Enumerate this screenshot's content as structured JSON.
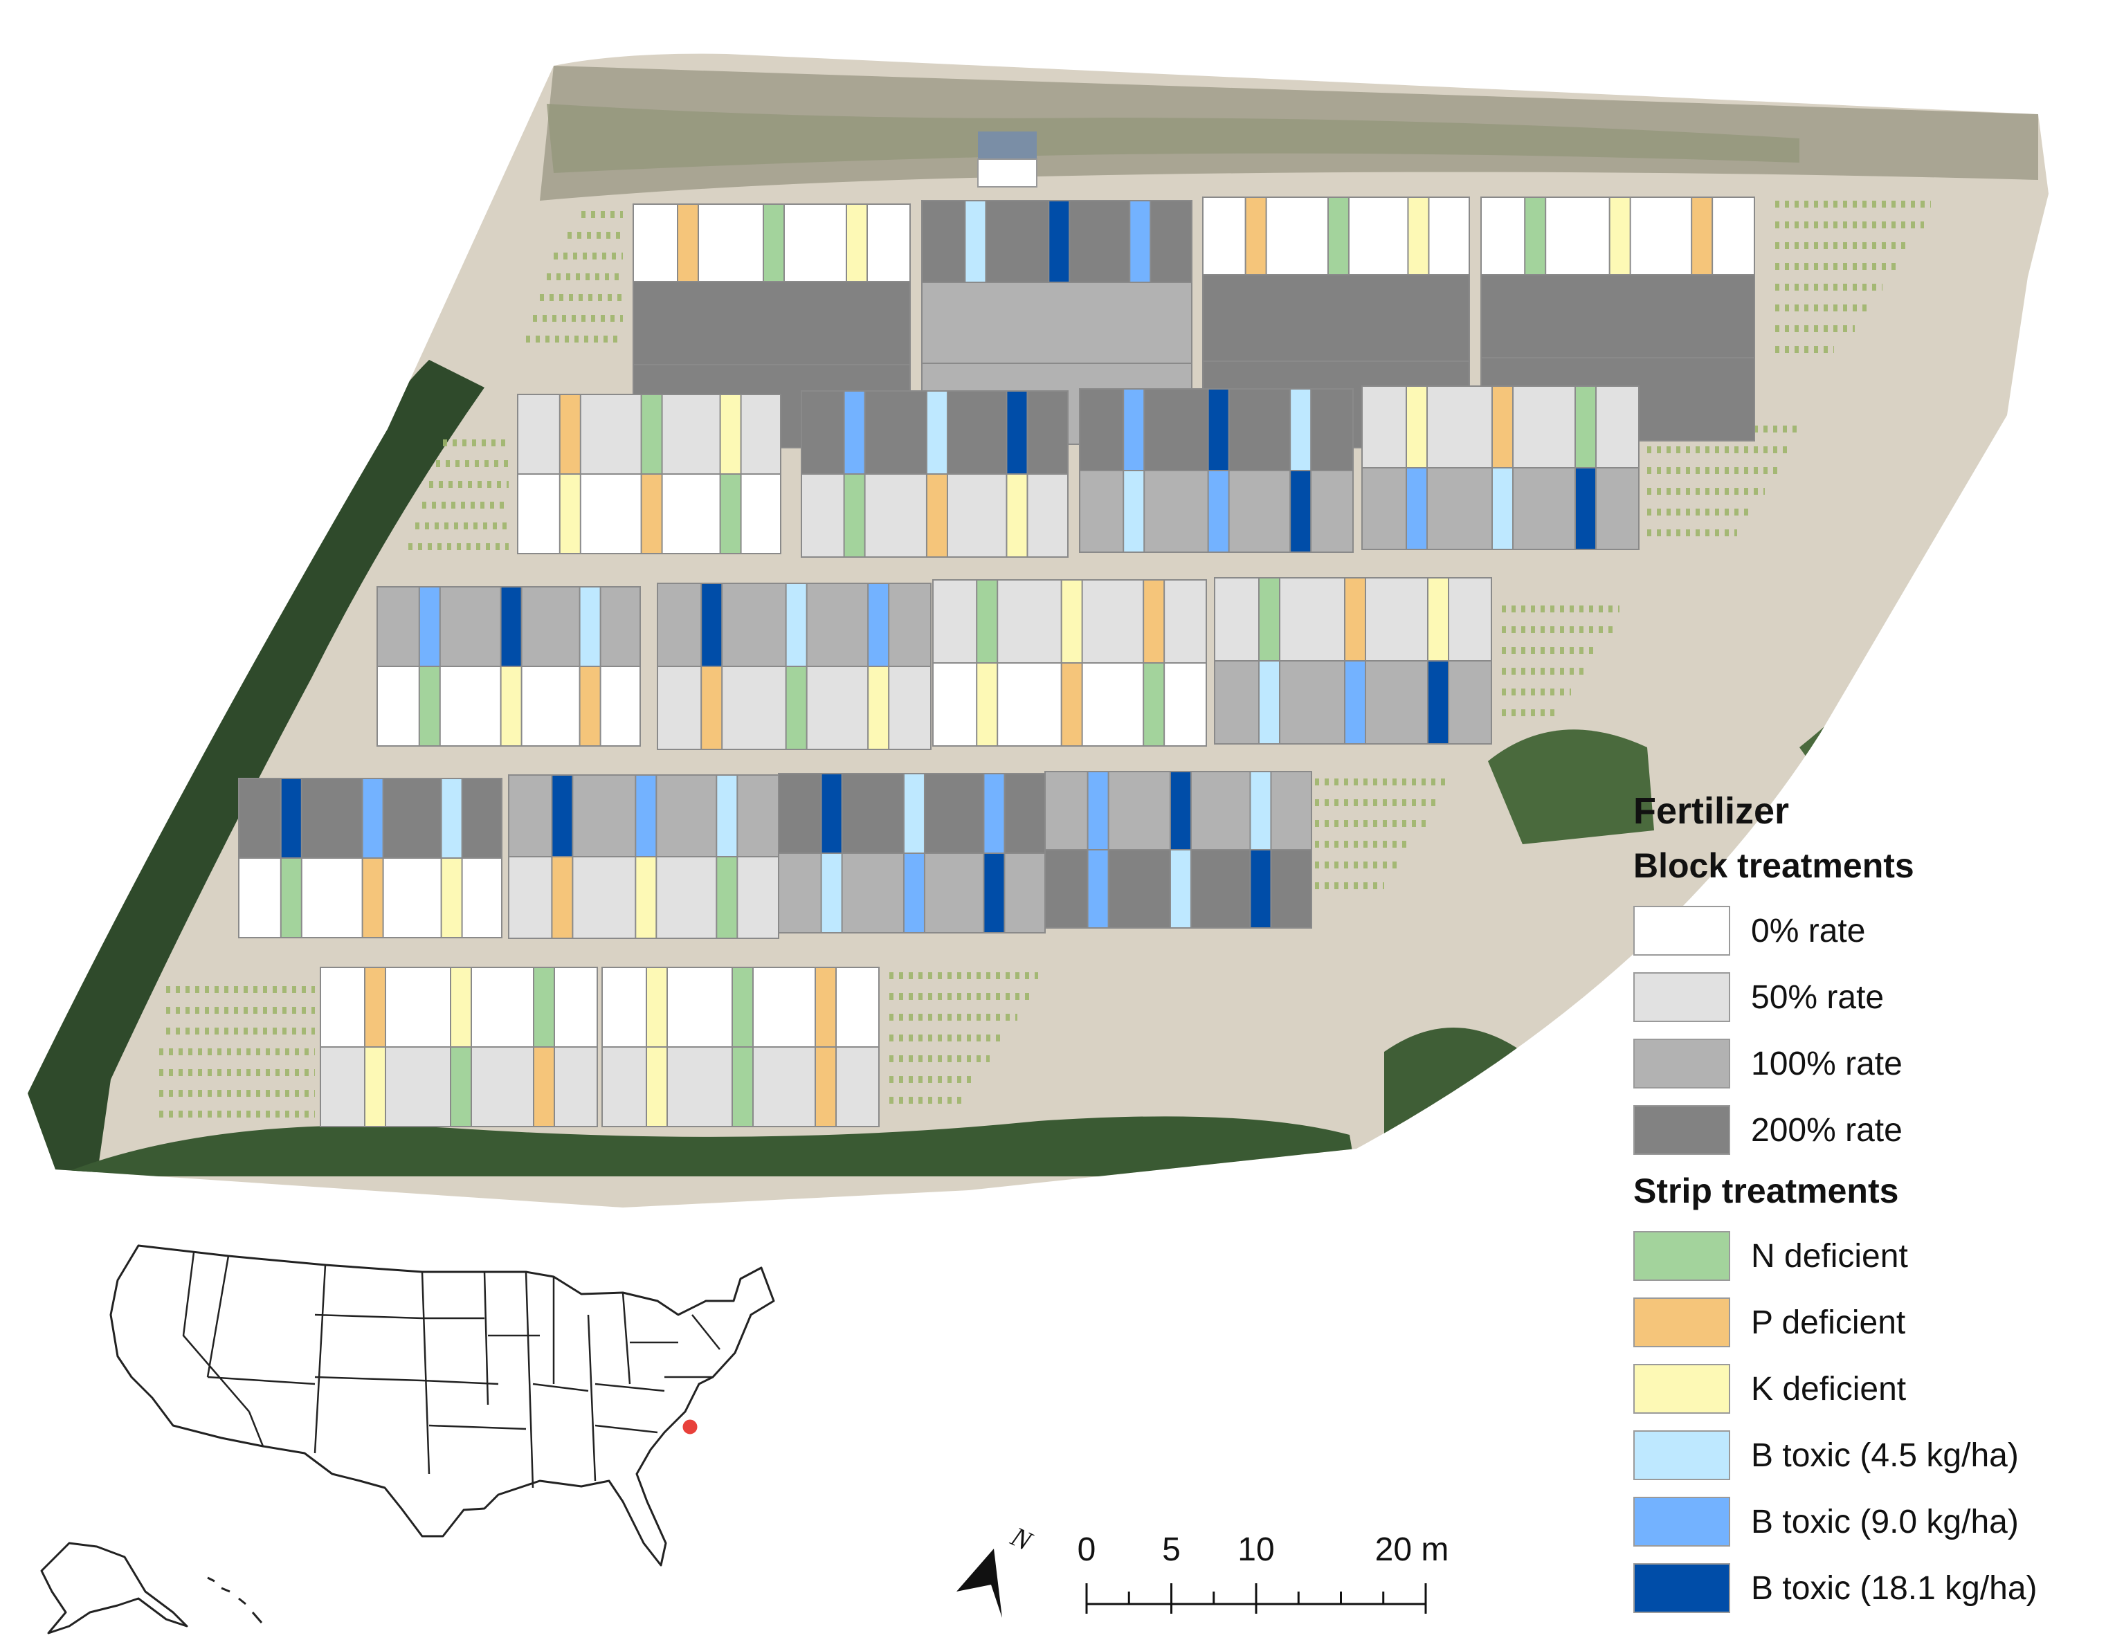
{
  "legend": {
    "title": "Fertilizer",
    "block_heading": "Block treatments",
    "blocks": [
      {
        "label": "0% rate",
        "color": "#ffffff"
      },
      {
        "label": "50% rate",
        "color": "#e1e1e1"
      },
      {
        "label": "100% rate",
        "color": "#b2b2b2"
      },
      {
        "label": "200% rate",
        "color": "#828282"
      }
    ],
    "strip_heading": "Strip treatments",
    "strips": [
      {
        "label": "N deficient",
        "color": "#a3d39c"
      },
      {
        "label": "P deficient",
        "color": "#f5c57a"
      },
      {
        "label": "K deficient",
        "color": "#fdf9b5"
      },
      {
        "label": "B toxic (4.5 kg/ha)",
        "color": "#bee8ff"
      },
      {
        "label": "B toxic (9.0 kg/ha)",
        "color": "#73b2ff"
      },
      {
        "label": "B toxic (18.1 kg/ha)",
        "color": "#004da8"
      }
    ]
  },
  "scale_bar": {
    "ticks": [
      "0",
      "5",
      "10",
      "20 m"
    ],
    "values": [
      0,
      5,
      10,
      20
    ]
  },
  "north_arrow": {
    "label": "N"
  },
  "site_marker": {
    "color": "#e8403a"
  }
}
